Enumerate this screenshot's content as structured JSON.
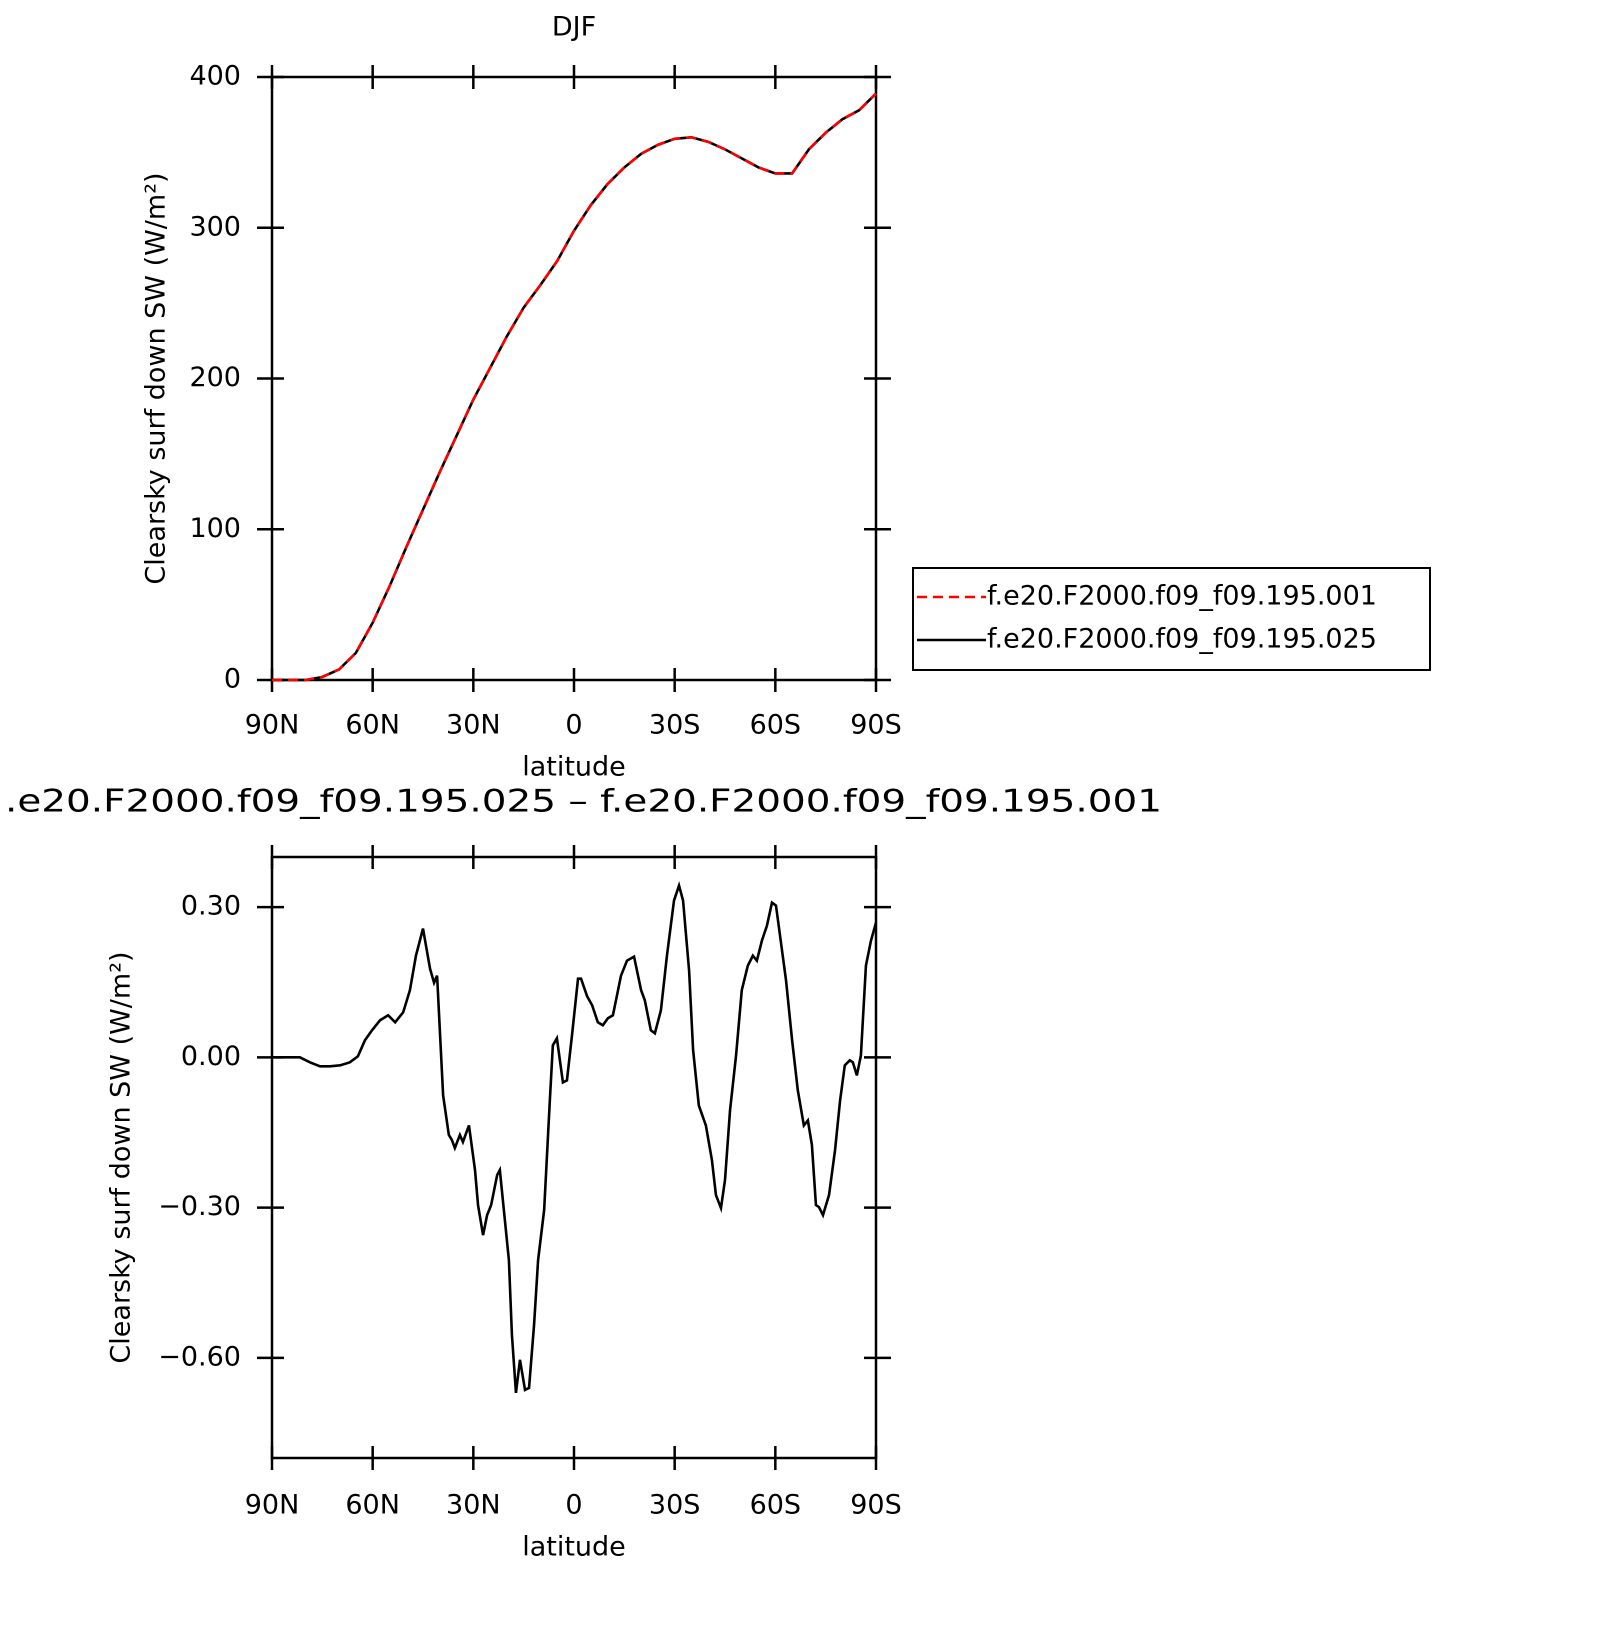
{
  "chart_data": [
    {
      "type": "line",
      "title": "DJF",
      "xlabel": "latitude",
      "ylabel": "Clearsky surf down SW (W/m²)",
      "x": [
        90,
        85,
        80,
        75,
        70,
        65,
        60,
        55,
        50,
        45,
        40,
        35,
        30,
        25,
        20,
        15,
        10,
        5,
        0,
        -5,
        -10,
        -15,
        -20,
        -25,
        -30,
        -35,
        -40,
        -45,
        -50,
        -55,
        -60,
        -65,
        -70,
        -75,
        -80,
        -85,
        -90
      ],
      "series": [
        {
          "name": "f.e20.F2000.f09_f09.195.001",
          "color": "#ff0000",
          "linestyle": "dashed",
          "values": [
            0,
            0,
            0,
            2,
            7,
            18,
            38,
            62,
            88,
            113,
            138,
            162,
            186,
            207,
            228,
            247,
            262,
            278,
            298,
            315,
            329,
            340,
            349,
            355,
            359,
            360,
            357,
            352,
            346,
            340,
            336,
            336,
            352,
            363,
            372,
            378,
            389
          ]
        },
        {
          "name": "f.e20.F2000.f09_f09.195.025",
          "color": "#000000",
          "linestyle": "solid",
          "values": [
            0,
            0,
            0,
            2,
            7,
            18,
            38,
            62,
            88,
            113,
            138,
            162,
            186,
            207,
            228,
            247,
            262,
            278,
            298,
            315,
            329,
            340,
            349,
            355,
            359,
            360,
            357,
            352,
            346,
            340,
            336,
            336,
            352,
            363,
            372,
            378,
            389
          ]
        }
      ],
      "xlim": [
        90,
        -90
      ],
      "xticks": [
        {
          "value": 90,
          "label": "90N"
        },
        {
          "value": 60,
          "label": "60N"
        },
        {
          "value": 30,
          "label": "30N"
        },
        0,
        {
          "value": -30,
          "label": "30S"
        },
        {
          "value": -60,
          "label": "60S"
        },
        {
          "value": -90,
          "label": "90S"
        }
      ],
      "ylim": [
        0,
        400
      ],
      "yticks": [
        0,
        100,
        200,
        300,
        400
      ],
      "legend": "right"
    },
    {
      "type": "line",
      "title": ".e20.F2000.f09_f09.195.025 – f.e20.F2000.f09_f09.195.001",
      "xlabel": "latitude",
      "ylabel": "Clearsky surf down SW (W/m²)",
      "x": [
        90,
        81.7,
        78.7,
        75.7,
        72.7,
        69.7,
        66.8,
        64.4,
        62.3,
        60.2,
        57.8,
        55.4,
        53.3,
        50.9,
        48.9,
        47.1,
        45,
        42.9,
        41.7,
        40.8,
        39,
        37.3,
        36.4,
        35.5,
        34,
        33.1,
        31.3,
        29.5,
        28.6,
        27.1,
        25.9,
        24.7,
        22.9,
        22.1,
        20.9,
        19.4,
        18.5,
        17.3,
        16.1,
        14.6,
        13.4,
        11.9,
        10.7,
        8.9,
        7.2,
        6.3,
        5.1,
        3.3,
        2.1,
        0.6,
        -1.2,
        -2.1,
        -3.9,
        -5.4,
        -7.1,
        -8.6,
        -10.1,
        -11.6,
        -14,
        -15.8,
        -17.9,
        -20,
        -21.1,
        -22.9,
        -24.1,
        -25.9,
        -27.7,
        -29.8,
        -31.3,
        -32.5,
        -34.3,
        -35.5,
        -37.2,
        -39.3,
        -41.1,
        -42.3,
        -43.8,
        -45,
        -46.5,
        -48.3,
        -50,
        -51.8,
        -53.3,
        -54.5,
        -56,
        -57.5,
        -59,
        -60.2,
        -61.4,
        -63.2,
        -65,
        -66.7,
        -68.5,
        -69.7,
        -70.9,
        -72.1,
        -73,
        -74.2,
        -76,
        -77.8,
        -79.3,
        -80.7,
        -82.2,
        -83.1,
        -84.3,
        -85.5,
        -87,
        -88.5,
        -90
      ],
      "values": [
        0,
        0,
        -0.01,
        -0.018,
        -0.018,
        -0.016,
        -0.01,
        0.002,
        0.034,
        0.054,
        0.074,
        0.084,
        0.07,
        0.09,
        0.134,
        0.203,
        0.257,
        0.177,
        0.149,
        0.163,
        -0.076,
        -0.155,
        -0.165,
        -0.181,
        -0.155,
        -0.169,
        -0.136,
        -0.225,
        -0.295,
        -0.355,
        -0.315,
        -0.295,
        -0.235,
        -0.225,
        -0.305,
        -0.405,
        -0.554,
        -0.67,
        -0.604,
        -0.664,
        -0.66,
        -0.534,
        -0.405,
        -0.305,
        -0.086,
        0.024,
        0.038,
        -0.05,
        -0.046,
        0.044,
        0.157,
        0.157,
        0.122,
        0.104,
        0.07,
        0.064,
        0.078,
        0.084,
        0.163,
        0.193,
        0.201,
        0.134,
        0.114,
        0.054,
        0.048,
        0.094,
        0.203,
        0.313,
        0.343,
        0.313,
        0.173,
        0.014,
        -0.096,
        -0.136,
        -0.205,
        -0.275,
        -0.301,
        -0.245,
        -0.106,
        0.004,
        0.134,
        0.183,
        0.203,
        0.193,
        0.233,
        0.263,
        0.309,
        0.303,
        0.243,
        0.153,
        0.034,
        -0.066,
        -0.136,
        -0.126,
        -0.175,
        -0.295,
        -0.299,
        -0.315,
        -0.275,
        -0.185,
        -0.086,
        -0.016,
        -0.006,
        -0.01,
        -0.036,
        0.004,
        0.183,
        0.233,
        0.269
      ],
      "color": "#000000",
      "xlim": [
        90,
        -90
      ],
      "xticks": [
        {
          "value": 90,
          "label": "90N"
        },
        {
          "value": 60,
          "label": "60N"
        },
        {
          "value": 30,
          "label": "30N"
        },
        0,
        {
          "value": -30,
          "label": "30S"
        },
        {
          "value": -60,
          "label": "60S"
        },
        {
          "value": -90,
          "label": "90S"
        }
      ],
      "ylim": [
        -0.8,
        0.4
      ],
      "yticks": [
        {
          "value": -0.6,
          "label": "−0.60"
        },
        {
          "value": -0.3,
          "label": "−0.30"
        },
        {
          "value": 0,
          "label": "0.00"
        },
        {
          "value": 0.3,
          "label": "0.30"
        }
      ]
    }
  ]
}
